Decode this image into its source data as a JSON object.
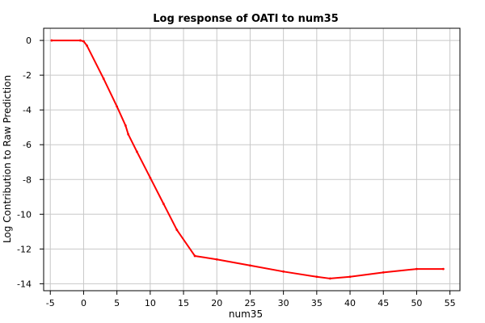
{
  "chart_data": {
    "type": "line",
    "title": "Log response of OATI to num35",
    "xlabel": "num35",
    "ylabel": "Log Contribution to Raw Prediction",
    "xlim": [
      -6,
      56.5
    ],
    "ylim": [
      -14.4,
      0.7
    ],
    "xticks": [
      -5,
      0,
      5,
      10,
      15,
      20,
      25,
      30,
      35,
      40,
      45,
      50,
      55
    ],
    "yticks": [
      0,
      -2,
      -4,
      -6,
      -8,
      -10,
      -12,
      -14
    ],
    "grid": true,
    "legend": "none",
    "series": [
      {
        "color": "#ff0000",
        "x": [
          -4.8,
          -0.5,
          0,
          0.5,
          3,
          5,
          6.3,
          6.7,
          8,
          10,
          12,
          14,
          16.7,
          20,
          25,
          30,
          35,
          37,
          40,
          45,
          50,
          54
        ],
        "y": [
          0,
          0,
          -0.05,
          -0.3,
          -2.2,
          -3.8,
          -4.9,
          -5.4,
          -6.4,
          -7.9,
          -9.4,
          -10.9,
          -12.4,
          -12.6,
          -12.95,
          -13.3,
          -13.6,
          -13.7,
          -13.6,
          -13.35,
          -13.15,
          -13.15
        ]
      }
    ]
  }
}
